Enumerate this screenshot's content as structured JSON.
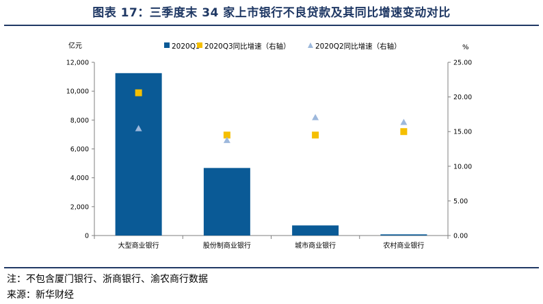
{
  "header": {
    "title": "图表 17：三季度末 34 家上市银行不良贷款及其同比增速变动对比"
  },
  "footer": {
    "note": "注：不包含厦门银行、浙商银行、渝农商行数据",
    "source": "来源：新华财经"
  },
  "chart_data": {
    "type": "bar",
    "categories": [
      "大型商业银行",
      "股份制商业银行",
      "城市商业银行",
      "农村商业银行"
    ],
    "series": [
      {
        "name": "2020Q3",
        "type": "bar",
        "axis": "left",
        "values": [
          11250,
          4680,
          700,
          80
        ]
      },
      {
        "name": "2020Q3同比增速（右轴）",
        "type": "scatter",
        "marker": "square",
        "axis": "right",
        "values": [
          20.6,
          14.5,
          14.5,
          15.0
        ]
      },
      {
        "name": "2020Q2同比增速（右轴）",
        "type": "scatter",
        "marker": "triangle",
        "axis": "right",
        "values": [
          15.5,
          13.8,
          17.1,
          16.4
        ]
      }
    ],
    "y_left": {
      "label": "亿元",
      "min": 0,
      "max": 12000,
      "ticks": [
        "0",
        "2,000",
        "4,000",
        "6,000",
        "8,000",
        "10,000",
        "12,000"
      ]
    },
    "y_right": {
      "label": "%",
      "min": 0,
      "max": 25,
      "ticks": [
        "0.00",
        "5.00",
        "10.00",
        "15.00",
        "20.00",
        "25.00"
      ]
    },
    "legend_position": "top",
    "grid": false,
    "colors": {
      "bar": "#0a5a96",
      "square": "#f5bf00",
      "triangle": "#9db8dc",
      "axis": "#7f7f7f",
      "title": "#1f3864"
    }
  }
}
